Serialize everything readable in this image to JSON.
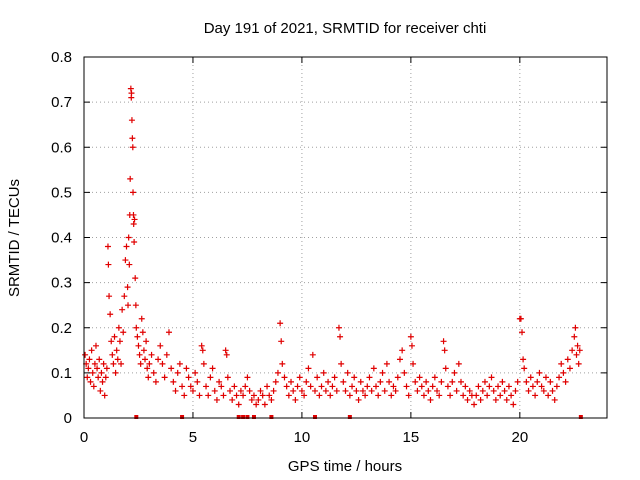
{
  "chart_data": {
    "type": "scatter",
    "title": "Day 191 of 2021, SRMTID for receiver chti",
    "xlabel": "GPS time / hours",
    "ylabel": "SRMTID / TECUs",
    "xlim": [
      0,
      24
    ],
    "ylim": [
      0,
      0.8
    ],
    "xticks": [
      0,
      5,
      10,
      15,
      20
    ],
    "yticks": [
      0,
      0.1,
      0.2,
      0.3,
      0.4,
      0.5,
      0.6,
      0.7,
      0.8
    ],
    "xtick_labels": [
      "0",
      "5",
      "10",
      "15",
      "20"
    ],
    "ytick_labels": [
      "0",
      "0.1",
      "0.2",
      "0.3",
      "0.4",
      "0.5",
      "0.6",
      "0.7",
      "0.8"
    ],
    "grid": true,
    "color": "#e00000",
    "marker": "plus",
    "series": [
      {
        "name": "SRMTID",
        "points": [
          [
            0.05,
            0.14
          ],
          [
            0.1,
            0.12
          ],
          [
            0.15,
            0.09
          ],
          [
            0.2,
            0.11
          ],
          [
            0.25,
            0.13
          ],
          [
            0.3,
            0.08
          ],
          [
            0.35,
            0.15
          ],
          [
            0.4,
            0.1
          ],
          [
            0.45,
            0.07
          ],
          [
            0.5,
            0.12
          ],
          [
            0.55,
            0.16
          ],
          [
            0.6,
            0.11
          ],
          [
            0.65,
            0.09
          ],
          [
            0.7,
            0.13
          ],
          [
            0.75,
            0.06
          ],
          [
            0.8,
            0.1
          ],
          [
            0.85,
            0.08
          ],
          [
            0.9,
            0.12
          ],
          [
            0.95,
            0.05
          ],
          [
            1.0,
            0.09
          ],
          [
            1.05,
            0.11
          ],
          [
            1.1,
            0.38
          ],
          [
            1.12,
            0.34
          ],
          [
            1.15,
            0.27
          ],
          [
            1.2,
            0.23
          ],
          [
            1.25,
            0.17
          ],
          [
            1.3,
            0.14
          ],
          [
            1.35,
            0.12
          ],
          [
            1.4,
            0.18
          ],
          [
            1.45,
            0.1
          ],
          [
            1.5,
            0.15
          ],
          [
            1.55,
            0.13
          ],
          [
            1.6,
            0.2
          ],
          [
            1.65,
            0.17
          ],
          [
            1.7,
            0.12
          ],
          [
            1.75,
            0.24
          ],
          [
            1.8,
            0.19
          ],
          [
            1.85,
            0.27
          ],
          [
            1.9,
            0.35
          ],
          [
            1.95,
            0.38
          ],
          [
            2.0,
            0.29
          ],
          [
            2.02,
            0.25
          ],
          [
            2.05,
            0.4
          ],
          [
            2.08,
            0.34
          ],
          [
            2.1,
            0.45
          ],
          [
            2.12,
            0.53
          ],
          [
            2.15,
            0.73
          ],
          [
            2.17,
            0.71
          ],
          [
            2.18,
            0.72
          ],
          [
            2.2,
            0.66
          ],
          [
            2.22,
            0.62
          ],
          [
            2.24,
            0.6
          ],
          [
            2.25,
            0.5
          ],
          [
            2.27,
            0.45
          ],
          [
            2.28,
            0.43
          ],
          [
            2.3,
            0.39
          ],
          [
            2.32,
            0.44
          ],
          [
            2.35,
            0.31
          ],
          [
            2.38,
            0.25
          ],
          [
            2.4,
            0.2
          ],
          [
            2.45,
            0.18
          ],
          [
            2.5,
            0.16
          ],
          [
            2.55,
            0.14
          ],
          [
            2.6,
            0.12
          ],
          [
            2.65,
            0.22
          ],
          [
            2.7,
            0.19
          ],
          [
            2.75,
            0.15
          ],
          [
            2.8,
            0.13
          ],
          [
            2.85,
            0.17
          ],
          [
            2.9,
            0.11
          ],
          [
            2.95,
            0.09
          ],
          [
            3.0,
            0.12
          ],
          [
            3.1,
            0.14
          ],
          [
            3.2,
            0.1
          ],
          [
            3.3,
            0.08
          ],
          [
            3.4,
            0.13
          ],
          [
            3.5,
            0.16
          ],
          [
            3.6,
            0.12
          ],
          [
            3.7,
            0.09
          ],
          [
            3.8,
            0.14
          ],
          [
            3.9,
            0.19
          ],
          [
            4.0,
            0.11
          ],
          [
            4.1,
            0.08
          ],
          [
            4.2,
            0.06
          ],
          [
            4.3,
            0.1
          ],
          [
            4.4,
            0.12
          ],
          [
            4.5,
            0.07
          ],
          [
            4.6,
            0.05
          ],
          [
            4.7,
            0.11
          ],
          [
            4.8,
            0.09
          ],
          [
            4.9,
            0.07
          ],
          [
            5.0,
            0.06
          ],
          [
            5.1,
            0.1
          ],
          [
            5.2,
            0.08
          ],
          [
            5.3,
            0.05
          ],
          [
            5.4,
            0.16
          ],
          [
            5.45,
            0.15
          ],
          [
            5.5,
            0.12
          ],
          [
            5.6,
            0.07
          ],
          [
            5.7,
            0.05
          ],
          [
            5.8,
            0.09
          ],
          [
            5.9,
            0.11
          ],
          [
            6.0,
            0.06
          ],
          [
            6.1,
            0.04
          ],
          [
            6.2,
            0.08
          ],
          [
            6.3,
            0.07
          ],
          [
            6.4,
            0.05
          ],
          [
            6.5,
            0.15
          ],
          [
            6.55,
            0.14
          ],
          [
            6.6,
            0.09
          ],
          [
            6.7,
            0.06
          ],
          [
            6.8,
            0.04
          ],
          [
            6.9,
            0.07
          ],
          [
            7.0,
            0.05
          ],
          [
            7.1,
            0.03
          ],
          [
            7.2,
            0.06
          ],
          [
            7.3,
            0.05
          ],
          [
            7.4,
            0.07
          ],
          [
            7.5,
            0.09
          ],
          [
            7.6,
            0.06
          ],
          [
            7.7,
            0.04
          ],
          [
            7.8,
            0.05
          ],
          [
            7.9,
            0.03
          ],
          [
            8.0,
            0.04
          ],
          [
            8.1,
            0.06
          ],
          [
            8.2,
            0.05
          ],
          [
            8.3,
            0.03
          ],
          [
            8.4,
            0.07
          ],
          [
            8.5,
            0.05
          ],
          [
            8.6,
            0.04
          ],
          [
            8.7,
            0.06
          ],
          [
            8.8,
            0.08
          ],
          [
            8.9,
            0.1
          ],
          [
            9.0,
            0.21
          ],
          [
            9.05,
            0.17
          ],
          [
            9.1,
            0.12
          ],
          [
            9.2,
            0.09
          ],
          [
            9.3,
            0.07
          ],
          [
            9.4,
            0.05
          ],
          [
            9.5,
            0.08
          ],
          [
            9.6,
            0.06
          ],
          [
            9.7,
            0.04
          ],
          [
            9.8,
            0.07
          ],
          [
            9.9,
            0.09
          ],
          [
            10.0,
            0.06
          ],
          [
            10.1,
            0.05
          ],
          [
            10.2,
            0.08
          ],
          [
            10.3,
            0.11
          ],
          [
            10.4,
            0.07
          ],
          [
            10.5,
            0.14
          ],
          [
            10.6,
            0.06
          ],
          [
            10.7,
            0.09
          ],
          [
            10.8,
            0.05
          ],
          [
            10.9,
            0.07
          ],
          [
            11.0,
            0.1
          ],
          [
            11.1,
            0.06
          ],
          [
            11.2,
            0.08
          ],
          [
            11.3,
            0.05
          ],
          [
            11.4,
            0.07
          ],
          [
            11.5,
            0.09
          ],
          [
            11.6,
            0.06
          ],
          [
            11.7,
            0.2
          ],
          [
            11.75,
            0.18
          ],
          [
            11.8,
            0.12
          ],
          [
            11.9,
            0.08
          ],
          [
            12.0,
            0.06
          ],
          [
            12.1,
            0.1
          ],
          [
            12.2,
            0.05
          ],
          [
            12.3,
            0.07
          ],
          [
            12.4,
            0.09
          ],
          [
            12.5,
            0.06
          ],
          [
            12.6,
            0.04
          ],
          [
            12.7,
            0.08
          ],
          [
            12.8,
            0.06
          ],
          [
            12.9,
            0.05
          ],
          [
            13.0,
            0.07
          ],
          [
            13.1,
            0.09
          ],
          [
            13.2,
            0.06
          ],
          [
            13.3,
            0.11
          ],
          [
            13.4,
            0.07
          ],
          [
            13.5,
            0.05
          ],
          [
            13.6,
            0.08
          ],
          [
            13.7,
            0.1
          ],
          [
            13.8,
            0.06
          ],
          [
            13.9,
            0.12
          ],
          [
            14.0,
            0.08
          ],
          [
            14.1,
            0.05
          ],
          [
            14.2,
            0.07
          ],
          [
            14.3,
            0.06
          ],
          [
            14.4,
            0.09
          ],
          [
            14.5,
            0.13
          ],
          [
            14.6,
            0.15
          ],
          [
            14.7,
            0.1
          ],
          [
            14.8,
            0.07
          ],
          [
            14.9,
            0.05
          ],
          [
            15.0,
            0.18
          ],
          [
            15.05,
            0.16
          ],
          [
            15.1,
            0.12
          ],
          [
            15.2,
            0.08
          ],
          [
            15.3,
            0.06
          ],
          [
            15.4,
            0.09
          ],
          [
            15.5,
            0.07
          ],
          [
            15.6,
            0.05
          ],
          [
            15.7,
            0.08
          ],
          [
            15.8,
            0.06
          ],
          [
            15.9,
            0.04
          ],
          [
            16.0,
            0.07
          ],
          [
            16.1,
            0.09
          ],
          [
            16.2,
            0.06
          ],
          [
            16.3,
            0.05
          ],
          [
            16.4,
            0.08
          ],
          [
            16.5,
            0.17
          ],
          [
            16.55,
            0.15
          ],
          [
            16.6,
            0.11
          ],
          [
            16.7,
            0.07
          ],
          [
            16.8,
            0.05
          ],
          [
            16.9,
            0.08
          ],
          [
            17.0,
            0.1
          ],
          [
            17.1,
            0.06
          ],
          [
            17.2,
            0.12
          ],
          [
            17.3,
            0.08
          ],
          [
            17.4,
            0.05
          ],
          [
            17.5,
            0.07
          ],
          [
            17.6,
            0.04
          ],
          [
            17.7,
            0.06
          ],
          [
            17.8,
            0.05
          ],
          [
            17.9,
            0.03
          ],
          [
            18.0,
            0.05
          ],
          [
            18.1,
            0.07
          ],
          [
            18.2,
            0.04
          ],
          [
            18.3,
            0.06
          ],
          [
            18.4,
            0.08
          ],
          [
            18.5,
            0.05
          ],
          [
            18.6,
            0.07
          ],
          [
            18.7,
            0.09
          ],
          [
            18.8,
            0.06
          ],
          [
            18.9,
            0.04
          ],
          [
            19.0,
            0.07
          ],
          [
            19.1,
            0.05
          ],
          [
            19.2,
            0.08
          ],
          [
            19.3,
            0.06
          ],
          [
            19.4,
            0.04
          ],
          [
            19.5,
            0.07
          ],
          [
            19.6,
            0.05
          ],
          [
            19.7,
            0.03
          ],
          [
            19.8,
            0.06
          ],
          [
            19.9,
            0.08
          ],
          [
            20.0,
            0.22
          ],
          [
            20.05,
            0.22
          ],
          [
            20.1,
            0.19
          ],
          [
            20.15,
            0.13
          ],
          [
            20.2,
            0.11
          ],
          [
            20.3,
            0.08
          ],
          [
            20.4,
            0.06
          ],
          [
            20.5,
            0.09
          ],
          [
            20.6,
            0.07
          ],
          [
            20.7,
            0.05
          ],
          [
            20.8,
            0.08
          ],
          [
            20.9,
            0.1
          ],
          [
            21.0,
            0.07
          ],
          [
            21.1,
            0.06
          ],
          [
            21.2,
            0.09
          ],
          [
            21.3,
            0.05
          ],
          [
            21.4,
            0.08
          ],
          [
            21.5,
            0.06
          ],
          [
            21.6,
            0.04
          ],
          [
            21.7,
            0.07
          ],
          [
            21.8,
            0.09
          ],
          [
            21.9,
            0.12
          ],
          [
            22.0,
            0.1
          ],
          [
            22.1,
            0.08
          ],
          [
            22.2,
            0.13
          ],
          [
            22.3,
            0.11
          ],
          [
            22.4,
            0.15
          ],
          [
            22.5,
            0.18
          ],
          [
            22.55,
            0.2
          ],
          [
            22.6,
            0.14
          ],
          [
            22.65,
            0.16
          ],
          [
            22.7,
            0.12
          ],
          [
            22.75,
            0.15
          ]
        ]
      }
    ],
    "zero_markers_x": [
      2.4,
      4.5,
      7.1,
      7.3,
      7.5,
      7.8,
      8.6,
      10.6,
      12.2,
      22.8
    ]
  }
}
